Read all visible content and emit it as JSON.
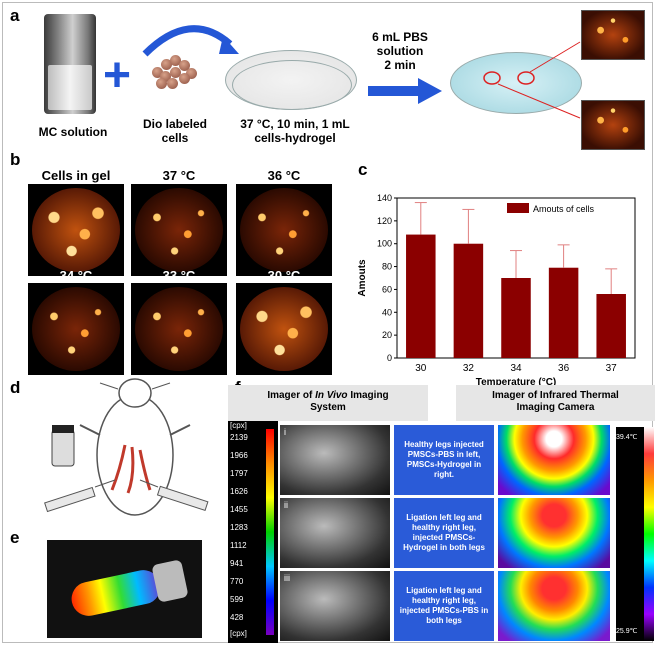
{
  "panels": {
    "a": "a",
    "b": "b",
    "c": "c",
    "d": "d",
    "e": "e",
    "f": "f"
  },
  "a": {
    "mc_label": "MC solution",
    "cells_label_1": "Dio labeled",
    "cells_label_2": "cells",
    "dish_label_1": "37 °C, 10 min, 1 mL",
    "dish_label_2": "cells-hydrogel",
    "pbs_label_1": "6 mL PBS",
    "pbs_label_2": "solution",
    "pbs_label_3": "2 min"
  },
  "b": {
    "labels": [
      "Cells in gel",
      "37 °C",
      "36 °C",
      "34 °C",
      "33 °C",
      "30 °C"
    ]
  },
  "chart_data": {
    "type": "bar",
    "categories": [
      "30",
      "32",
      "34",
      "36",
      "37"
    ],
    "series": [
      {
        "name": "Amouts of cells",
        "values": [
          108,
          100,
          70,
          79,
          56
        ],
        "errors": [
          28,
          30,
          24,
          20,
          22
        ]
      }
    ],
    "xlabel": "Temperature (°C)",
    "ylabel": "Amouts",
    "ylim": [
      0,
      140
    ],
    "yticks": [
      0,
      20,
      40,
      60,
      80,
      100,
      120,
      140
    ],
    "legend": "top-right",
    "bar_color": "#8b0000"
  },
  "f": {
    "header_left_1": "Imager of",
    "header_left_italic": "In Vivo",
    "header_left_2": "Imaging",
    "header_left_3": "System",
    "header_right_1": "Imager of Infrared Thermal",
    "header_right_2": "Imaging Camera",
    "scale_unit_top": "[cpx]",
    "scale_unit_bottom": "[cpx]",
    "scale_ticks": [
      "2139",
      "1966",
      "1797",
      "1626",
      "1455",
      "1283",
      "1112",
      "941",
      "770",
      "599",
      "428"
    ],
    "rows": [
      {
        "num": "i",
        "text": "Healthy legs injected PMSCs-PBS in left, PMSCs-Hydrogel in right."
      },
      {
        "num": "ii",
        "text": "Ligation left leg and healthy right leg, injected PMSCs-Hydrogel in both legs"
      },
      {
        "num": "iii",
        "text": "Ligation left leg and healthy right leg, injected PMSCs-PBS in both legs"
      }
    ],
    "temp_max": "39.4℃",
    "temp_min": "25.9℃"
  }
}
